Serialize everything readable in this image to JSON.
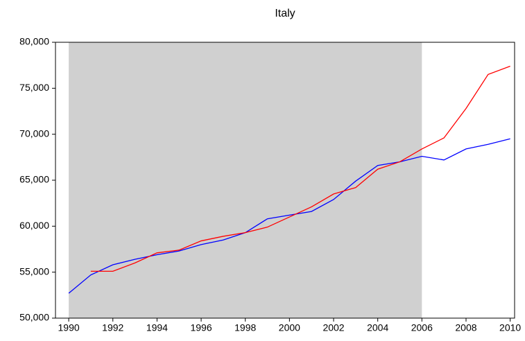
{
  "chart_data": {
    "type": "line",
    "title": "Italy",
    "x": [
      1990,
      1991,
      1992,
      1993,
      1994,
      1995,
      1996,
      1997,
      1998,
      1999,
      2000,
      2001,
      2002,
      2003,
      2004,
      2005,
      2006,
      2007,
      2008,
      2009,
      2010
    ],
    "series": [
      {
        "color": "#0000ff",
        "values": [
          52700,
          54700,
          55800,
          56400,
          56900,
          57300,
          58000,
          58500,
          59300,
          60800,
          61200,
          61600,
          62900,
          64900,
          66600,
          67000,
          67600,
          67200,
          68400,
          68900,
          69500
        ]
      },
      {
        "color": "#ff0000",
        "values": [
          null,
          55100,
          55100,
          56000,
          57100,
          57400,
          58400,
          58900,
          59300,
          59900,
          61000,
          62100,
          63500,
          64200,
          66200,
          67000,
          68400,
          69600,
          72800,
          76500,
          77400
        ]
      }
    ],
    "shade": {
      "from": 1990,
      "to": 2006,
      "color": "#d0d0d0"
    },
    "xlim": [
      1989.4,
      2010.2
    ],
    "xticks": [
      1990,
      1992,
      1994,
      1996,
      1998,
      2000,
      2002,
      2004,
      2006,
      2008,
      2010
    ],
    "ylim": [
      50000,
      80000
    ],
    "yticks": [
      {
        "value": 50000,
        "label": "50,000"
      },
      {
        "value": 55000,
        "label": "55,000"
      },
      {
        "value": 60000,
        "label": "60,000"
      },
      {
        "value": 65000,
        "label": "65,000"
      },
      {
        "value": 70000,
        "label": "70,000"
      },
      {
        "value": 75000,
        "label": "75,000"
      },
      {
        "value": 80000,
        "label": "80,000"
      }
    ]
  }
}
